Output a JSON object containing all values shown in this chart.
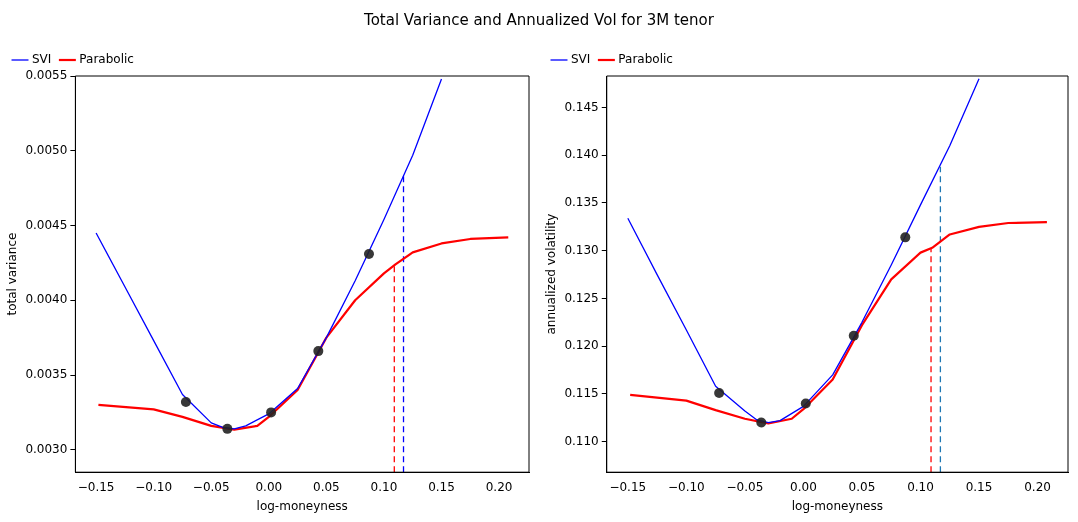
{
  "chart_data": [
    {
      "type": "line",
      "title": "Total Variance and Annualized Vol for 3M tenor",
      "xlabel": "log-moneyness",
      "ylabel": "total variance",
      "legend": "top left",
      "grid": false,
      "xlim": [
        -0.168,
        0.226
      ],
      "ylim": [
        0.00285,
        0.0055
      ],
      "xticks": [
        {
          "value": -0.15,
          "label": "−0.15"
        },
        {
          "value": -0.1,
          "label": "−0.10"
        },
        {
          "value": -0.05,
          "label": "−0.05"
        },
        {
          "value": 0,
          "label": "0.00"
        },
        {
          "value": 0.05,
          "label": "0.05"
        },
        {
          "value": 0.1,
          "label": "0.10"
        },
        {
          "value": 0.15,
          "label": "0.15"
        },
        {
          "value": 0.2,
          "label": "0.20"
        }
      ],
      "yticks": [
        {
          "value": 0.003,
          "label": "0.0030"
        },
        {
          "value": 0.0035,
          "label": "0.0035"
        },
        {
          "value": 0.004,
          "label": "0.0040"
        },
        {
          "value": 0.0045,
          "label": "0.0045"
        },
        {
          "value": 0.005,
          "label": "0.0050"
        },
        {
          "value": 0.0055,
          "label": "0.0055"
        }
      ],
      "series": [
        {
          "name": "SVI",
          "type": "line",
          "color": "#0000ff",
          "marker": "none",
          "x": [
            -0.15,
            -0.125,
            -0.1,
            -0.075,
            -0.05,
            -0.04,
            -0.03,
            -0.02,
            0,
            0.025,
            0.05,
            0.075,
            0.1,
            0.125,
            0.15
          ],
          "values": [
            0.00445,
            0.00409,
            0.00373,
            0.00337,
            0.00318,
            0.00315,
            0.00314,
            0.00316,
            0.00324,
            0.00341,
            0.00375,
            0.00413,
            0.00454,
            0.00497,
            0.00548
          ]
        },
        {
          "name": "Parabolic",
          "type": "line",
          "color": "#ff0000",
          "marker": "none",
          "x": [
            -0.148,
            -0.1,
            -0.075,
            -0.05,
            -0.03,
            -0.01,
            0,
            0.025,
            0.05,
            0.075,
            0.1,
            0.11,
            0.125,
            0.15,
            0.175,
            0.208
          ],
          "values": [
            0.0033,
            0.00327,
            0.00322,
            0.00316,
            0.003135,
            0.00316,
            0.00322,
            0.0034,
            0.00375,
            0.004,
            0.00418,
            0.00424,
            0.00432,
            0.00438,
            0.00441,
            0.00442
          ]
        },
        {
          "type": "scatter",
          "color": "#222222",
          "marker": "circle",
          "x": [
            -0.072,
            -0.036,
            0.002,
            0.043,
            0.087
          ],
          "values": [
            0.00332,
            0.00314,
            0.00325,
            0.00366,
            0.00431
          ]
        },
        {
          "type": "line",
          "color": "#ff0000",
          "marker": "none",
          "line_style": "dashed",
          "x": [
            0.109,
            0.109
          ],
          "values": [
            0.00285,
            0.00424
          ]
        },
        {
          "type": "line",
          "color": "#0000ff",
          "marker": "none",
          "line_style": "dashed",
          "x": [
            0.117,
            0.117
          ],
          "values": [
            0.00285,
            0.00483
          ]
        }
      ]
    },
    {
      "type": "line",
      "xlabel": "log-moneyness",
      "ylabel": "annualized volatility",
      "legend": "top left",
      "grid": false,
      "xlim": [
        -0.168,
        0.226
      ],
      "ylim": [
        0.1068,
        0.1483
      ],
      "xticks": [
        {
          "value": -0.15,
          "label": "−0.15"
        },
        {
          "value": -0.1,
          "label": "−0.10"
        },
        {
          "value": -0.05,
          "label": "−0.05"
        },
        {
          "value": 0,
          "label": "0.00"
        },
        {
          "value": 0.05,
          "label": "0.05"
        },
        {
          "value": 0.1,
          "label": "0.10"
        },
        {
          "value": 0.15,
          "label": "0.15"
        },
        {
          "value": 0.2,
          "label": "0.20"
        }
      ],
      "yticks": [
        {
          "value": 0.11,
          "label": "0.110"
        },
        {
          "value": 0.115,
          "label": "0.115"
        },
        {
          "value": 0.12,
          "label": "0.120"
        },
        {
          "value": 0.125,
          "label": "0.125"
        },
        {
          "value": 0.13,
          "label": "0.130"
        },
        {
          "value": 0.135,
          "label": "0.135"
        },
        {
          "value": 0.14,
          "label": "0.140"
        },
        {
          "value": 0.145,
          "label": "0.145"
        }
      ],
      "series": [
        {
          "name": "SVI",
          "type": "line",
          "color": "#0000ff",
          "marker": "none",
          "x": [
            -0.15,
            -0.125,
            -0.1,
            -0.075,
            -0.05,
            -0.04,
            -0.03,
            -0.02,
            0,
            0.025,
            0.05,
            0.075,
            0.1,
            0.125,
            0.15
          ],
          "values": [
            0.1334,
            0.1275,
            0.1217,
            0.1158,
            0.1132,
            0.1123,
            0.112,
            0.1122,
            0.1137,
            0.117,
            0.1225,
            0.1285,
            0.1348,
            0.141,
            0.148
          ]
        },
        {
          "name": "Parabolic",
          "type": "line",
          "color": "#ff0000",
          "marker": "none",
          "x": [
            -0.148,
            -0.1,
            -0.075,
            -0.05,
            -0.03,
            -0.01,
            0,
            0.025,
            0.05,
            0.075,
            0.1,
            0.11,
            0.125,
            0.15,
            0.175,
            0.208
          ],
          "values": [
            0.1149,
            0.1143,
            0.1133,
            0.1124,
            0.1119,
            0.1124,
            0.1134,
            0.1165,
            0.1222,
            0.127,
            0.1298,
            0.1303,
            0.1317,
            0.1325,
            0.1329,
            0.133
          ]
        },
        {
          "type": "scatter",
          "color": "#222222",
          "marker": "circle",
          "x": [
            -0.072,
            -0.036,
            0.002,
            0.043,
            0.087
          ],
          "values": [
            0.1151,
            0.112,
            0.114,
            0.1211,
            0.1314
          ]
        },
        {
          "type": "line",
          "color": "#ff0000",
          "marker": "none",
          "line_style": "dashed",
          "x": [
            0.109,
            0.109
          ],
          "values": [
            0.1068,
            0.1302
          ]
        },
        {
          "type": "line",
          "color": "#1f77b4",
          "marker": "none",
          "line_style": "dashed",
          "x": [
            0.117,
            0.117
          ],
          "values": [
            0.1068,
            0.1388
          ]
        }
      ]
    }
  ]
}
